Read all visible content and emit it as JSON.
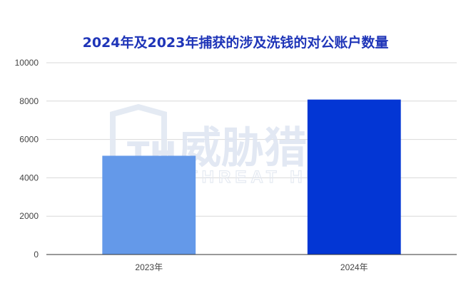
{
  "chart_data": {
    "type": "bar",
    "title": "2024年及2023年捕获的涉及洗钱的对公账户数量",
    "categories": [
      "2023年",
      "2024年"
    ],
    "values": [
      5150,
      8080
    ],
    "bar_colors": [
      "#6499e9",
      "#0336d4"
    ],
    "ylim": [
      0,
      10000
    ],
    "yticks": [
      0,
      2000,
      4000,
      6000,
      8000,
      10000
    ],
    "grid": true,
    "legend": "none"
  },
  "watermark": {
    "main_text": "威胁猎人",
    "sub_text": "THREAT HUNTER",
    "logo_letters": "TH"
  },
  "colors": {
    "title": "#1f35b8",
    "grid": "#d9d9d9",
    "watermark": "#dfe6f2"
  }
}
